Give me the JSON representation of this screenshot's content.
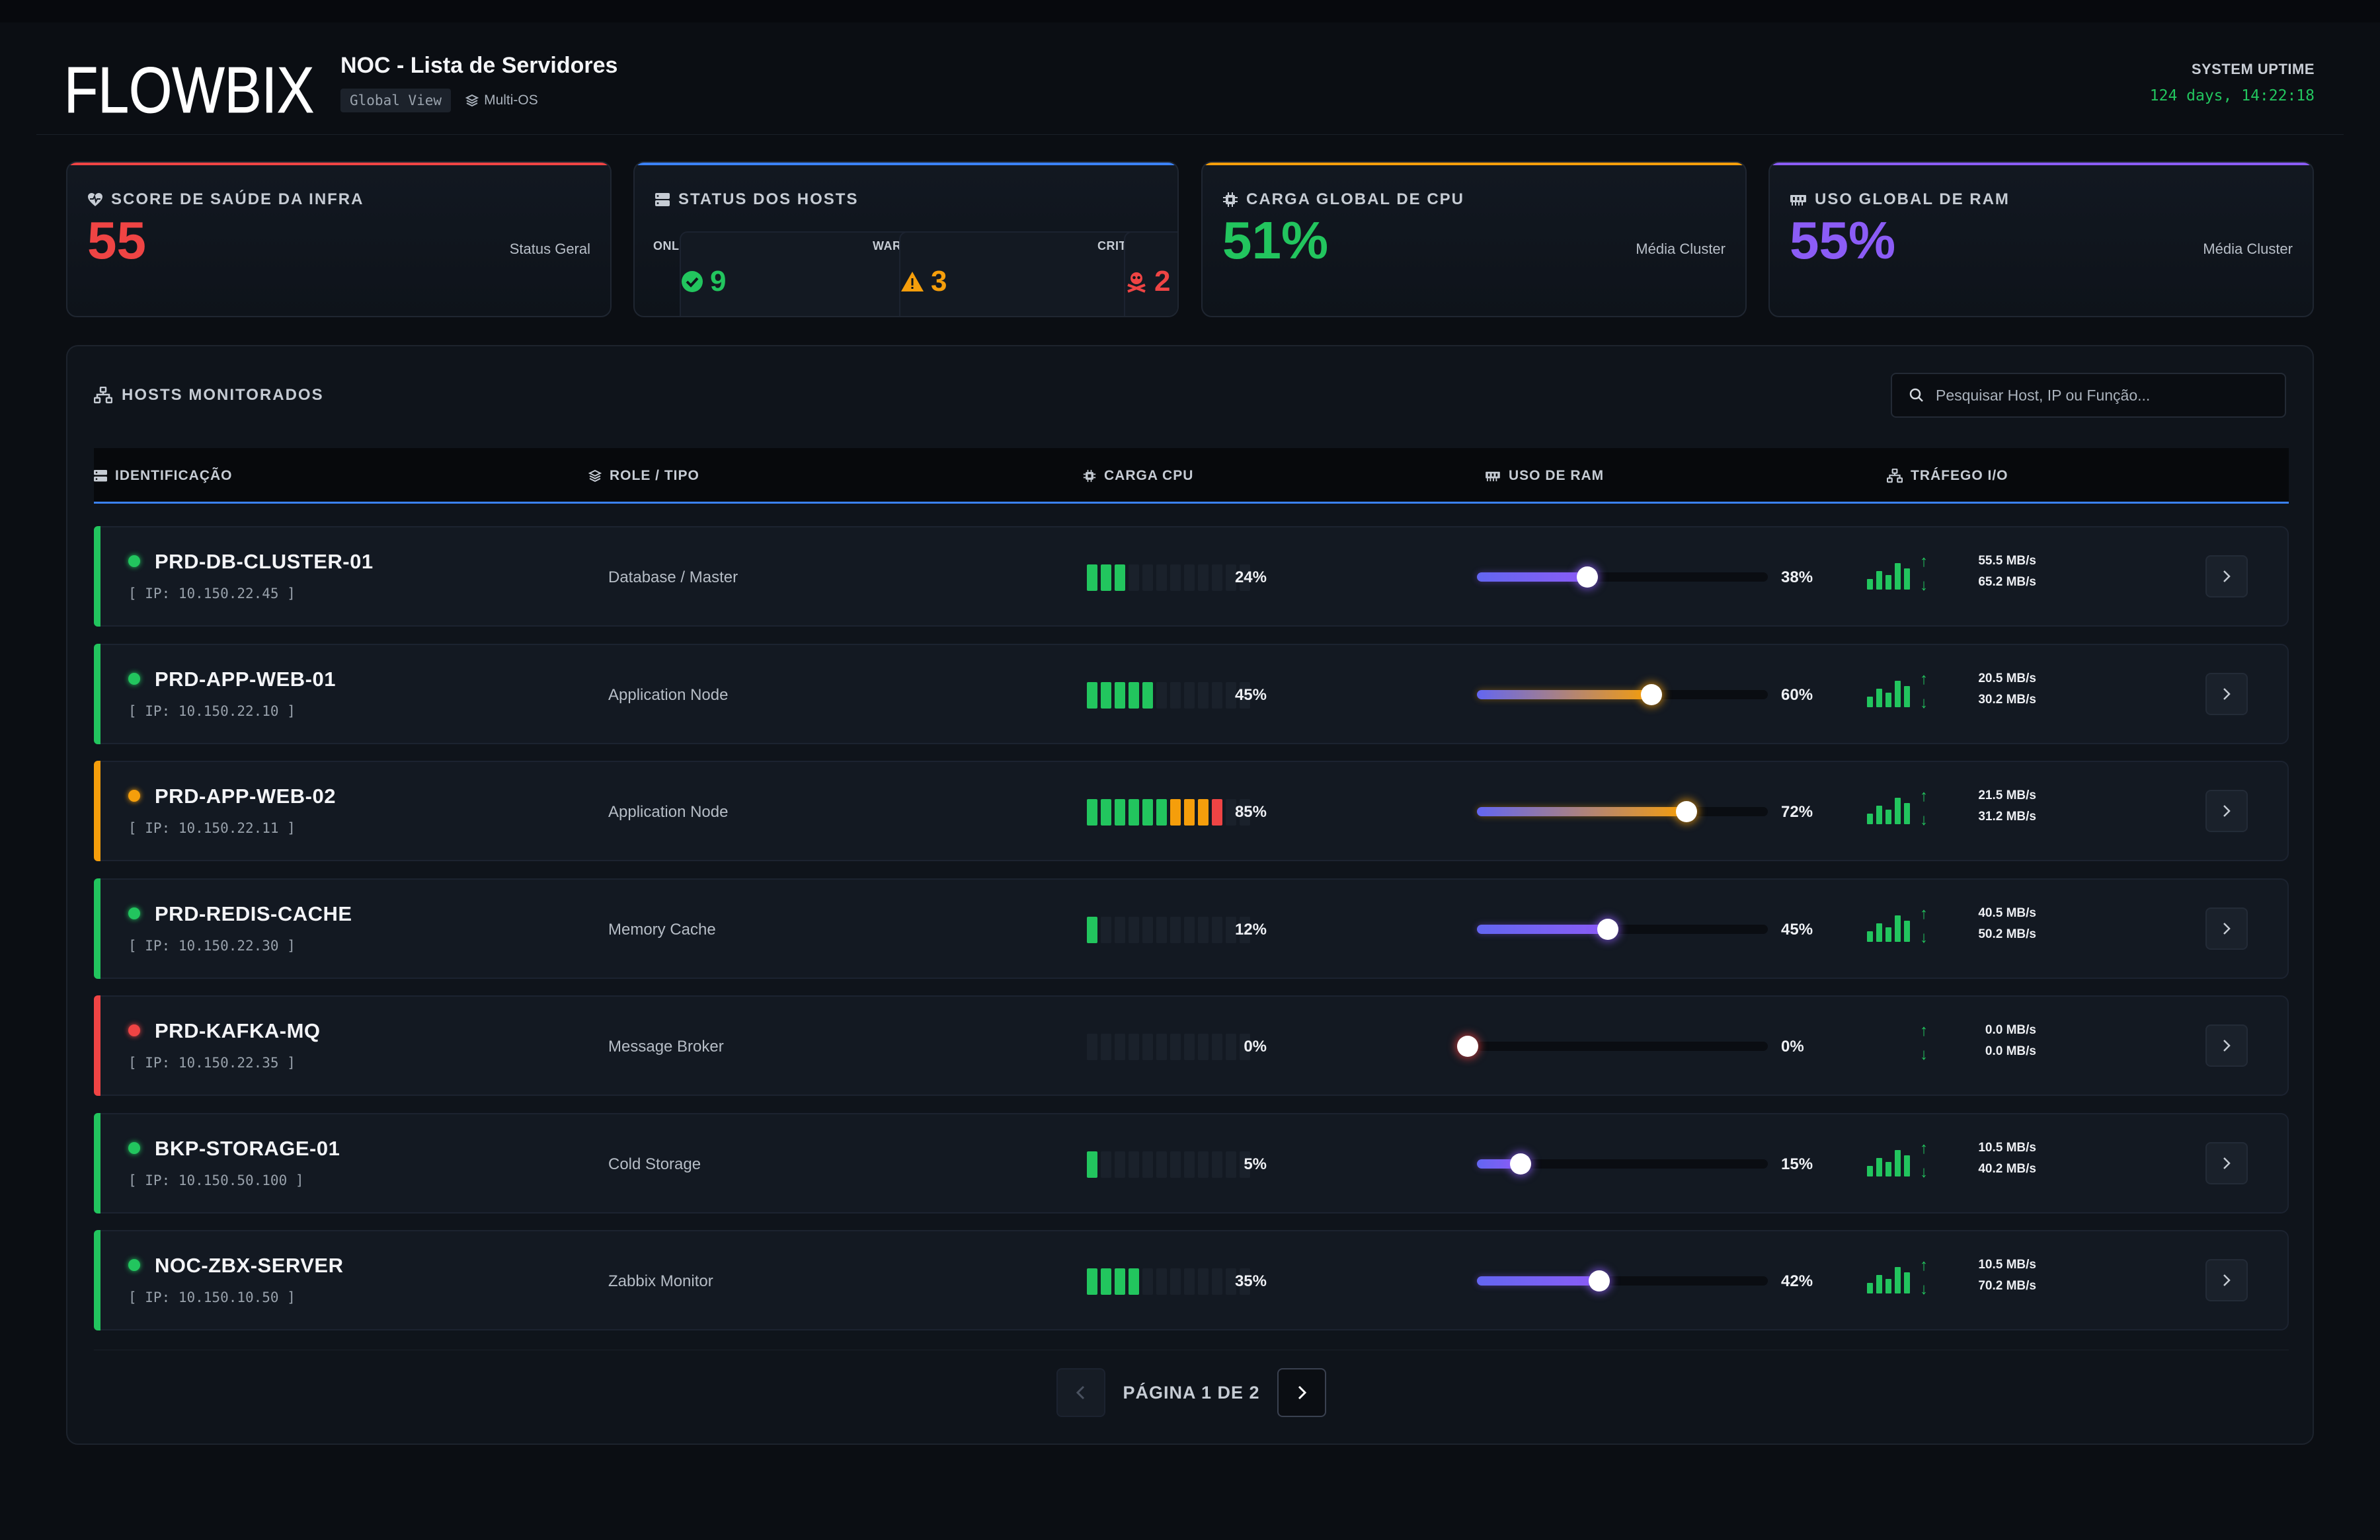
{
  "header": {
    "logo": "FLOWBIX",
    "title": "NOC - Lista de Servidores",
    "badge_view": "Global View",
    "badge_os": "Multi-OS",
    "uptime_label": "SYSTEM UPTIME",
    "uptime_value": "124 days, 14:22:18"
  },
  "kpis": {
    "health": {
      "title": "SCORE DE SAÚDE DA INFRA",
      "value": "55",
      "sub": "Status Geral",
      "color": "#ef4444",
      "icon": "heart-pulse-icon"
    },
    "hosts": {
      "title": "STATUS DOS HOSTS",
      "color": "#3b82f6",
      "icon": "server-icon",
      "online": {
        "value": "9",
        "label": "ONLINE",
        "color": "#22c55e",
        "icon": "check-circle-icon"
      },
      "warning": {
        "value": "3",
        "label": "WARNING",
        "color": "#f59e0b",
        "icon": "warning-triangle-icon"
      },
      "critical": {
        "value": "2",
        "label": "CRITICAL",
        "color": "#ef4444",
        "icon": "skull-crossbones-icon"
      }
    },
    "cpu": {
      "title": "CARGA GLOBAL DE CPU",
      "value": "51%",
      "sub": "Média Cluster",
      "color": "#22c55e",
      "icon": "cpu-chip-icon"
    },
    "ram": {
      "title": "USO GLOBAL DE RAM",
      "value": "55%",
      "sub": "Média Cluster",
      "color": "#8b5cf6",
      "icon": "memory-icon"
    }
  },
  "hosts_panel": {
    "title": "HOSTS MONITORADOS",
    "search_placeholder": "Pesquisar Host, IP ou Função...",
    "columns": {
      "id": "IDENTIFICAÇÃO",
      "role": "ROLE / TIPO",
      "cpu": "CARGA CPU",
      "ram": "USO DE RAM",
      "io": "TRÁFEGO I/O"
    },
    "rows": [
      {
        "name": "PRD-DB-CLUSTER-01",
        "ip": "[ IP: 10.150.22.45 ]",
        "role": "Database / Master",
        "status": "ok",
        "cpu": 24,
        "cpu_label": "24%",
        "ram": 38,
        "ram_label": "38%",
        "up": "55.5 MB/s",
        "down": "65.2 MB/s"
      },
      {
        "name": "PRD-APP-WEB-01",
        "ip": "[ IP: 10.150.22.10 ]",
        "role": "Application Node",
        "status": "ok",
        "cpu": 45,
        "cpu_label": "45%",
        "ram": 60,
        "ram_label": "60%",
        "up": "20.5 MB/s",
        "down": "30.2 MB/s"
      },
      {
        "name": "PRD-APP-WEB-02",
        "ip": "[ IP: 10.150.22.11 ]",
        "role": "Application Node",
        "status": "warning",
        "cpu": 85,
        "cpu_label": "85%",
        "ram": 72,
        "ram_label": "72%",
        "up": "21.5 MB/s",
        "down": "31.2 MB/s"
      },
      {
        "name": "PRD-REDIS-CACHE",
        "ip": "[ IP: 10.150.22.30 ]",
        "role": "Memory Cache",
        "status": "ok",
        "cpu": 12,
        "cpu_label": "12%",
        "ram": 45,
        "ram_label": "45%",
        "up": "40.5 MB/s",
        "down": "50.2 MB/s"
      },
      {
        "name": "PRD-KAFKA-MQ",
        "ip": "[ IP: 10.150.22.35 ]",
        "role": "Message Broker",
        "status": "critical",
        "cpu": 0,
        "cpu_label": "0%",
        "ram": 0,
        "ram_label": "0%",
        "up": "0.0 MB/s",
        "down": "0.0 MB/s"
      },
      {
        "name": "BKP-STORAGE-01",
        "ip": "[ IP: 10.150.50.100 ]",
        "role": "Cold Storage",
        "status": "ok",
        "cpu": 5,
        "cpu_label": "5%",
        "ram": 15,
        "ram_label": "15%",
        "up": "10.5 MB/s",
        "down": "40.2 MB/s"
      },
      {
        "name": "NOC-ZBX-SERVER",
        "ip": "[ IP: 10.150.10.50 ]",
        "role": "Zabbix Monitor",
        "status": "ok",
        "cpu": 35,
        "cpu_label": "35%",
        "ram": 42,
        "ram_label": "42%",
        "up": "10.5 MB/s",
        "down": "70.2 MB/s"
      }
    ],
    "pagination": {
      "label": "PÁGINA 1 DE 2"
    }
  },
  "colors": {
    "ok": "#22c55e",
    "warning": "#f59e0b",
    "critical": "#ef4444",
    "accent": "#3b82f6",
    "ram_start": "#6366f1",
    "ram_warn": "#f59e0b"
  }
}
